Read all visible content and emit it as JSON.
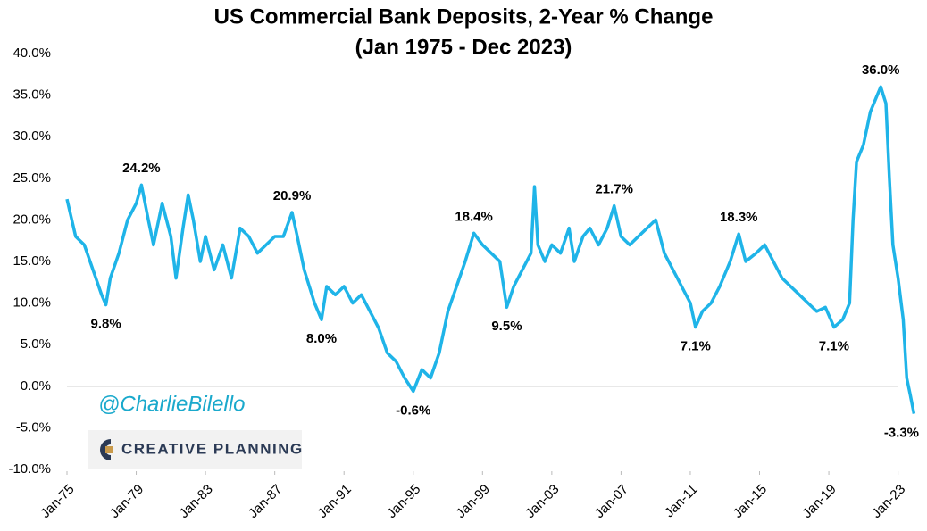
{
  "chart_data": {
    "type": "line",
    "title": "US Commercial Bank Deposits, 2-Year % Change",
    "subtitle": "(Jan 1975 - Dec 2023)",
    "credits": [
      "@CharlieBilello",
      "CREATIVE PLANNING"
    ],
    "xlim": [
      1975,
      2024
    ],
    "xticks": [
      {
        "value": 1975,
        "label": "Jan-75"
      },
      {
        "value": 1979,
        "label": "Jan-79"
      },
      {
        "value": 1983,
        "label": "Jan-83"
      },
      {
        "value": 1987,
        "label": "Jan-87"
      },
      {
        "value": 1991,
        "label": "Jan-91"
      },
      {
        "value": 1995,
        "label": "Jan-95"
      },
      {
        "value": 1999,
        "label": "Jan-99"
      },
      {
        "value": 2003,
        "label": "Jan-03"
      },
      {
        "value": 2007,
        "label": "Jan-07"
      },
      {
        "value": 2011,
        "label": "Jan-11"
      },
      {
        "value": 2015,
        "label": "Jan-15"
      },
      {
        "value": 2019,
        "label": "Jan-19"
      },
      {
        "value": 2023,
        "label": "Jan-23"
      }
    ],
    "ylim": [
      -10,
      40
    ],
    "yticks": [
      {
        "value": -10,
        "label": "-10.0%"
      },
      {
        "value": -5,
        "label": "-5.0%"
      },
      {
        "value": 0,
        "label": "0.0%"
      },
      {
        "value": 5,
        "label": "5.0%"
      },
      {
        "value": 10,
        "label": "10.0%"
      },
      {
        "value": 15,
        "label": "15.0%"
      },
      {
        "value": 20,
        "label": "20.0%"
      },
      {
        "value": 25,
        "label": "25.0%"
      },
      {
        "value": 30,
        "label": "30.0%"
      },
      {
        "value": 35,
        "label": "35.0%"
      },
      {
        "value": 40,
        "label": "40.0%"
      }
    ],
    "grid": false,
    "x": [
      1975.0,
      1975.5,
      1976.0,
      1976.5,
      1977.0,
      1977.25,
      1977.5,
      1978.0,
      1978.5,
      1979.0,
      1979.3,
      1979.7,
      1980.0,
      1980.5,
      1981.0,
      1981.3,
      1981.7,
      1982.0,
      1982.3,
      1982.7,
      1983.0,
      1983.5,
      1984.0,
      1984.5,
      1985.0,
      1985.5,
      1986.0,
      1986.5,
      1987.0,
      1987.5,
      1988.0,
      1988.3,
      1988.7,
      1989.0,
      1989.3,
      1989.7,
      1990.0,
      1990.5,
      1991.0,
      1991.5,
      1992.0,
      1992.5,
      1993.0,
      1993.5,
      1994.0,
      1994.5,
      1995.0,
      1995.5,
      1996.0,
      1996.5,
      1997.0,
      1997.5,
      1998.0,
      1998.5,
      1999.0,
      1999.5,
      2000.0,
      2000.4,
      2000.8,
      2001.3,
      2001.8,
      2002.0,
      2002.2,
      2002.6,
      2003.0,
      2003.5,
      2004.0,
      2004.3,
      2004.8,
      2005.2,
      2005.7,
      2006.2,
      2006.6,
      2007.0,
      2007.5,
      2008.0,
      2008.5,
      2009.0,
      2009.5,
      2010.0,
      2010.5,
      2011.0,
      2011.3,
      2011.7,
      2012.2,
      2012.7,
      2013.3,
      2013.8,
      2014.2,
      2014.8,
      2015.3,
      2015.8,
      2016.3,
      2016.8,
      2017.3,
      2017.8,
      2018.3,
      2018.8,
      2019.3,
      2019.8,
      2020.2,
      2020.4,
      2020.6,
      2021.0,
      2021.4,
      2021.8,
      2022.0,
      2022.3,
      2022.5,
      2022.7,
      2023.0,
      2023.3,
      2023.5,
      2023.7,
      2023.92
    ],
    "series": [
      {
        "name": "2-Year % Change",
        "color": "#1fb4e8",
        "values": [
          22.5,
          18,
          17,
          14,
          11,
          9.8,
          13,
          16,
          20,
          22,
          24.2,
          20,
          17,
          22,
          18,
          13,
          19,
          23,
          20,
          15,
          18,
          14,
          17,
          13,
          19,
          18,
          16,
          17,
          18,
          18,
          20.9,
          18,
          14,
          12,
          10,
          8.0,
          12,
          11,
          12,
          10,
          11,
          9,
          7,
          4,
          3,
          1,
          -0.6,
          2,
          1,
          4,
          9,
          12,
          15,
          18.4,
          17,
          16,
          15,
          9.5,
          12,
          14,
          16,
          24,
          17,
          15,
          17,
          16,
          19,
          15,
          18,
          19,
          17,
          19,
          21.7,
          18,
          17,
          18,
          19,
          20,
          16,
          14,
          12,
          10,
          7.1,
          9,
          10,
          12,
          15,
          18.3,
          15,
          16,
          17,
          15,
          13,
          12,
          11,
          10,
          9,
          9.5,
          7.1,
          8,
          10,
          20,
          27,
          29,
          33,
          35,
          36.0,
          34,
          25,
          17,
          13,
          8,
          1,
          -1,
          -3.3
        ],
        "value_labels": [
          null,
          null,
          null,
          null,
          null,
          "9.8%",
          null,
          null,
          null,
          null,
          "24.2%",
          null,
          null,
          null,
          null,
          null,
          null,
          null,
          null,
          null,
          null,
          null,
          null,
          null,
          null,
          null,
          null,
          null,
          null,
          null,
          "20.9%",
          null,
          null,
          null,
          null,
          "8.0%",
          null,
          null,
          null,
          null,
          null,
          null,
          null,
          null,
          null,
          null,
          "-0.6%",
          null,
          null,
          null,
          null,
          null,
          null,
          "18.4%",
          null,
          null,
          null,
          "9.5%",
          null,
          null,
          null,
          null,
          null,
          null,
          null,
          null,
          null,
          null,
          null,
          null,
          null,
          null,
          "21.7%",
          null,
          null,
          null,
          null,
          null,
          null,
          null,
          null,
          null,
          "7.1%",
          null,
          null,
          null,
          null,
          "18.3%",
          null,
          null,
          null,
          null,
          null,
          null,
          null,
          null,
          null,
          null,
          "7.1%",
          null,
          null,
          null,
          null,
          null,
          null,
          null,
          "36.0%",
          null,
          null,
          null,
          null,
          null,
          null,
          null,
          "-3.3%"
        ]
      }
    ]
  }
}
